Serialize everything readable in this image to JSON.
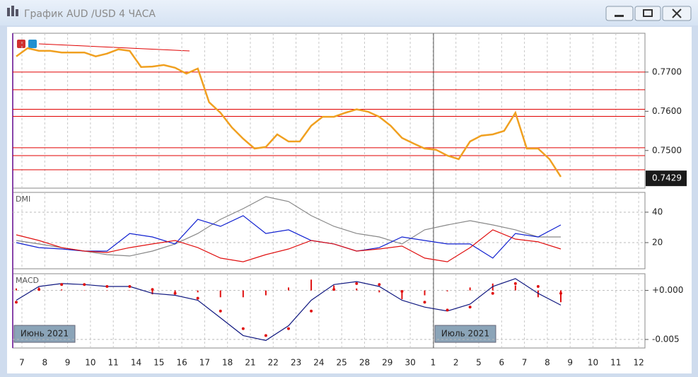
{
  "window": {
    "title": "График AUD /USD  4 ЧАСА"
  },
  "x_axis": {
    "labels": [
      "7",
      "8",
      "9",
      "10",
      "11",
      "14",
      "15",
      "16",
      "17",
      "18",
      "21",
      "22",
      "23",
      "24",
      "25",
      "28",
      "29",
      "30",
      "1",
      "2",
      "5",
      "6",
      "7",
      "8",
      "9",
      "10",
      "11",
      "12"
    ]
  },
  "period_labels": [
    "Июнь 2021",
    "Июль 2021"
  ],
  "chart_data": [
    {
      "type": "line",
      "ylim": [
        0.7404,
        0.7799
      ],
      "yticks": [
        {
          "value": 0.77,
          "label": "0.7700"
        },
        {
          "value": 0.76,
          "label": "0.7600"
        },
        {
          "value": 0.75,
          "label": "0.7500"
        }
      ],
      "levels": [
        0.77,
        0.7655,
        0.7605,
        0.7587,
        0.7507,
        0.7487,
        0.7451
      ],
      "level_color": "#e00000",
      "last_price": 0.7429,
      "series": [
        {
          "color": "#f0a020",
          "style": "line",
          "values": [
            0.774,
            0.7761,
            0.7754,
            0.7754,
            0.775,
            0.775,
            0.775,
            0.774,
            0.7747,
            0.7758,
            0.7754,
            0.7713,
            0.7714,
            0.7718,
            0.7711,
            0.7696,
            0.7709,
            0.7623,
            0.7596,
            0.7559,
            0.753,
            0.7505,
            0.7509,
            0.7541,
            0.7523,
            0.7523,
            0.7563,
            0.7586,
            0.7586,
            0.7596,
            0.7605,
            0.7599,
            0.7586,
            0.7563,
            0.7532,
            0.7518,
            0.7505,
            0.7502,
            0.7487,
            0.7478,
            0.7523,
            0.7538,
            0.7541,
            0.755,
            0.7596,
            0.7505,
            0.7505,
            0.7478,
            0.7433
          ]
        }
      ]
    },
    {
      "type": "line",
      "title": "DMI",
      "ylim": [
        2.8,
        53
      ],
      "yticks": [
        40,
        20
      ],
      "grid": true,
      "series": [
        {
          "color": "#888888",
          "style": "line",
          "values": [
            21.4,
            19.1,
            16.7,
            14.4,
            12.1,
            11.2,
            14.4,
            19.1,
            26.0,
            35.3,
            42.3,
            50.2,
            47.0,
            37.7,
            30.7,
            26.0,
            23.7,
            19.1,
            28.4,
            31.6,
            34.4,
            31.6,
            28.4,
            23.7,
            23.7
          ]
        },
        {
          "color": "#1020d0",
          "style": "line",
          "values": [
            20,
            16.7,
            15.8,
            14.4,
            14.4,
            26.0,
            23.7,
            19.1,
            35.3,
            30.7,
            37.7,
            26.0,
            28.4,
            21.4,
            19.1,
            14.4,
            16.7,
            23.7,
            21.4,
            19.1,
            19.1,
            9.8,
            26.0,
            23.7,
            31.6
          ]
        },
        {
          "color": "#e01010",
          "style": "line",
          "values": [
            25.1,
            21.4,
            16.7,
            14.4,
            13.5,
            16.7,
            19.1,
            21.4,
            16.7,
            9.8,
            7.4,
            12.1,
            15.8,
            21.4,
            19.1,
            14.4,
            15.8,
            17.7,
            9.8,
            7.4,
            16.7,
            28.4,
            22.3,
            20.5,
            15.8
          ]
        }
      ]
    },
    {
      "type": "line",
      "title": "MACD",
      "ylim": [
        -0.00587,
        0.0017
      ],
      "yticks": [
        {
          "value": 0,
          "label": "+0.000"
        },
        {
          "value": -0.005,
          "label": "-0.005"
        }
      ],
      "grid": true,
      "series": [
        {
          "color": "#e01010",
          "style": "bar",
          "values": [
            0.0002,
            0.0003,
            0.0001,
            0,
            0,
            0,
            -0.0004,
            -0.0002,
            -0.0002,
            -0.0007,
            -0.0007,
            -0.0005,
            0.0003,
            0.0011,
            0.0005,
            0.0002,
            -0.0002,
            -0.0009,
            -0.0005,
            -0.0001,
            0.0003,
            0.0007,
            0.0005,
            -0.0007,
            -0.0012
          ]
        },
        {
          "color": "#101880",
          "style": "line",
          "values": [
            -0.001,
            0.0004,
            0.0007,
            0.0006,
            0.0004,
            0.0004,
            -0.0003,
            -0.0005,
            -0.001,
            -0.0028,
            -0.0046,
            -0.0051,
            -0.0036,
            -0.001,
            0.0006,
            0.0009,
            0.0004,
            -0.001,
            -0.0017,
            -0.0021,
            -0.0014,
            0.0004,
            0.0012,
            -0.0003,
            -0.0015
          ]
        },
        {
          "color": "#e01010",
          "style": "dots",
          "values": [
            -0.0012,
            0.0001,
            0.0006,
            0.0006,
            0.0004,
            0.0004,
            0.0001,
            -0.0003,
            -0.0008,
            -0.0021,
            -0.0039,
            -0.0046,
            -0.0039,
            -0.0021,
            0.0001,
            0.0007,
            0.0006,
            -0.0001,
            -0.0012,
            -0.002,
            -0.0017,
            -0.0003,
            0.0007,
            0.0004,
            -0.0003
          ]
        }
      ]
    }
  ]
}
